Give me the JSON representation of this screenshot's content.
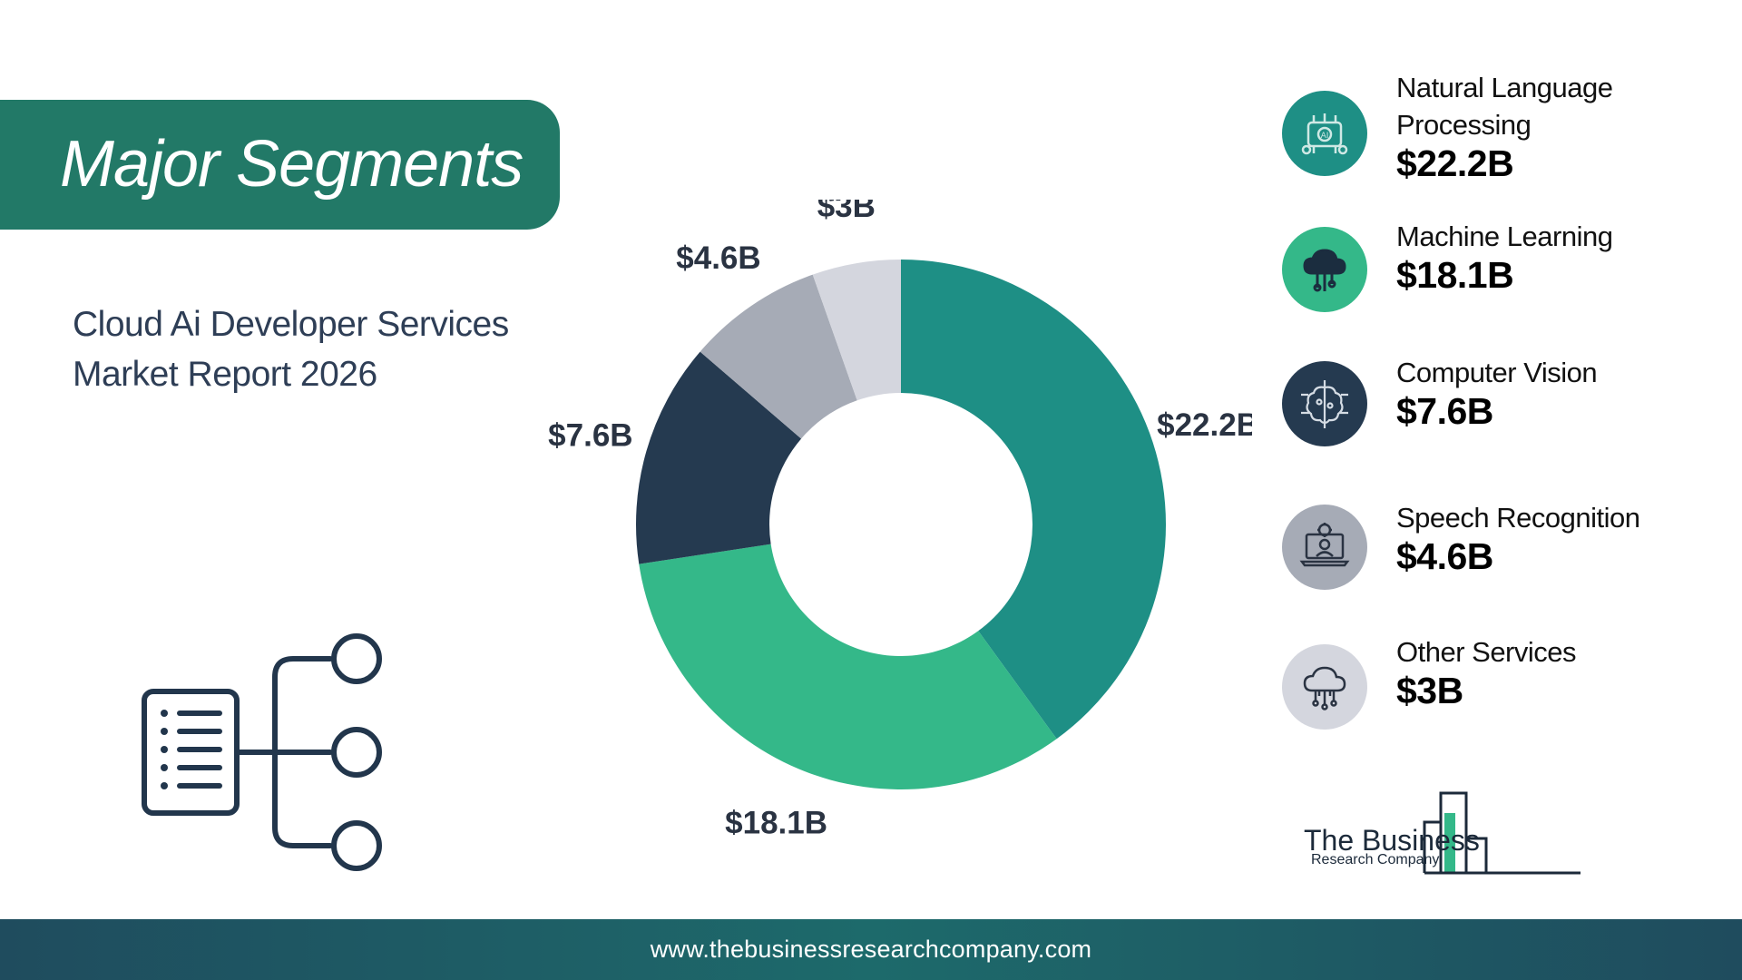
{
  "header": {
    "title": "Major Segments",
    "subtitle_line1": "Cloud Ai Developer Services",
    "subtitle_line2": "Market Report 2026"
  },
  "chart_data": {
    "type": "pie",
    "donut": true,
    "categories": [
      "Natural Language Processing",
      "Machine Learning",
      "Computer Vision",
      "Speech Recognition",
      "Other Services"
    ],
    "values": [
      22.2,
      18.1,
      7.6,
      4.6,
      3
    ],
    "labels": [
      "$22.2B",
      "$18.1B",
      "$7.6B",
      "$4.6B",
      "$3B"
    ],
    "unit": "$B",
    "colors": [
      "#1e8f85",
      "#34b889",
      "#253a50",
      "#a6abb6",
      "#d4d6de"
    ]
  },
  "legend": [
    {
      "name": "Natural Language Processing",
      "value": "$22.2B",
      "icon": "nlp-chip-icon",
      "color": "#1e8f85"
    },
    {
      "name": "Machine Learning",
      "value": "$18.1B",
      "icon": "cloud-network-icon",
      "color": "#34b889"
    },
    {
      "name": "Computer Vision",
      "value": "$7.6B",
      "icon": "brain-circuit-icon",
      "color": "#253a50"
    },
    {
      "name": "Speech Recognition",
      "value": "$4.6B",
      "icon": "laptop-gear-icon",
      "color": "#a6abb6"
    },
    {
      "name": "Other Services",
      "value": "$3B",
      "icon": "cloud-circuit-icon",
      "color": "#d4d6de"
    }
  ],
  "logo": {
    "name": "The Business",
    "sub": "Research Company"
  },
  "footer": {
    "url": "www.thebusinessresearchcompany.com"
  }
}
